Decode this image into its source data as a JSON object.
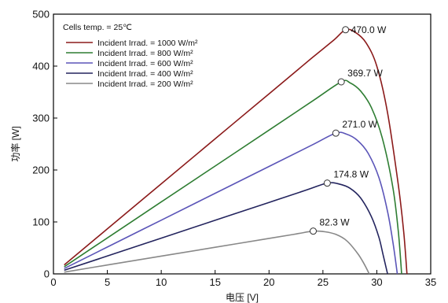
{
  "chart_data": {
    "type": "line",
    "xlabel": "电压 [V]",
    "ylabel": "功率 [W]",
    "xlim": [
      0,
      35
    ],
    "ylim": [
      0,
      500
    ],
    "xticks": [
      0,
      5,
      10,
      15,
      20,
      25,
      30,
      35
    ],
    "yticks": [
      0,
      100,
      200,
      300,
      400,
      500
    ],
    "grid": false,
    "legend_title": "Cells temp. = 25℃",
    "legend_position": "top-left",
    "series": [
      {
        "name": "Incident Irrad. = 1000 W/m²",
        "color": "#8b1a1a",
        "x": [
          1.0,
          5,
          10,
          15,
          20,
          24,
          26,
          27.1,
          28,
          29,
          30,
          31,
          32,
          32.5,
          32.8
        ],
        "y": [
          17.3,
          86.7,
          173.4,
          260,
          346.7,
          416,
          450,
          470.0,
          465,
          445,
          400,
          310,
          170,
          80,
          0
        ],
        "peak": {
          "x": 27.1,
          "y": 470.0,
          "label": "470.0  W"
        }
      },
      {
        "name": "Incident Irrad. = 800 W/m²",
        "color": "#2e7d32",
        "x": [
          1.0,
          5,
          10,
          15,
          20,
          24,
          26.7,
          27.5,
          28.5,
          29.5,
          30.5,
          31.5,
          32.0,
          32.3
        ],
        "y": [
          13.8,
          69.2,
          138.5,
          207.6,
          276.8,
          332.2,
          369.7,
          368,
          352,
          320,
          262,
          165,
          80,
          0
        ],
        "peak": {
          "x": 26.7,
          "y": 369.7,
          "label": "369.7  W"
        }
      },
      {
        "name": "Incident Irrad. = 600 W/m²",
        "color": "#5b55b8",
        "x": [
          1.0,
          5,
          10,
          15,
          20,
          24,
          26.2,
          27.2,
          28.2,
          29.2,
          30.2,
          31.0,
          31.5,
          31.9
        ],
        "y": [
          10.3,
          51.7,
          103.4,
          155.1,
          206.8,
          248.2,
          271.0,
          269,
          257,
          232,
          185,
          120,
          60,
          0
        ],
        "peak": {
          "x": 26.2,
          "y": 271.0,
          "label": "271.0  W"
        }
      },
      {
        "name": "Incident Irrad. = 400 W/m²",
        "color": "#23245e",
        "x": [
          1.0,
          5,
          10,
          15,
          20,
          23.5,
          25.4,
          26.5,
          27.5,
          28.5,
          29.5,
          30.2,
          30.6,
          31.0
        ],
        "y": [
          6.9,
          34.4,
          68.8,
          103.2,
          137.6,
          161.7,
          174.8,
          173,
          165,
          146,
          110,
          70,
          35,
          0
        ],
        "peak": {
          "x": 25.4,
          "y": 174.8,
          "label": "174.8  W"
        }
      },
      {
        "name": "Incident Irrad. = 200 W/m²",
        "color": "#888888",
        "x": [
          1.0,
          5,
          10,
          15,
          20,
          22.5,
          24.1,
          25.2,
          26.2,
          27.2,
          28.2,
          28.8,
          29.3
        ],
        "y": [
          3.4,
          17.1,
          34.2,
          51.2,
          68.3,
          76.8,
          82.3,
          81,
          76,
          64,
          40,
          20,
          0
        ],
        "peak": {
          "x": 24.1,
          "y": 82.3,
          "label": "82.3  W"
        }
      }
    ]
  }
}
